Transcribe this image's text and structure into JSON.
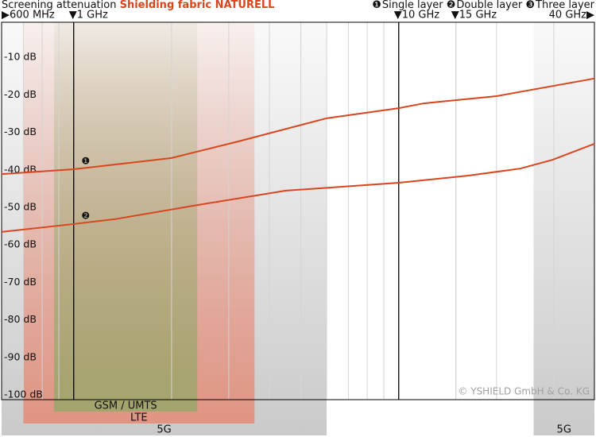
{
  "chart_data": {
    "type": "line",
    "title": "Screening attenuation",
    "subtitle": "Shielding fabric NATURELL",
    "copyright": "© YSHIELD GmbH & Co. KG",
    "x_scale": "log",
    "xlim": [
      0.6,
      40
    ],
    "xticks": [
      {
        "value": 0.6,
        "label": "▶600 MHz"
      },
      {
        "value": 1,
        "label": "▼1 GHz",
        "strong": true
      },
      {
        "value": 10,
        "label": "▼10 GHz",
        "strong": true
      },
      {
        "value": 15,
        "label": "▼15 GHz"
      },
      {
        "value": 40,
        "label": "40 GHz▶"
      }
    ],
    "xgrid": [
      0.7,
      0.8,
      0.9,
      2,
      3,
      4,
      5,
      6,
      7,
      8,
      9,
      20,
      30
    ],
    "ylim": [
      -100,
      0
    ],
    "yticks": [
      {
        "value": -10,
        "label": "-10 dB"
      },
      {
        "value": -20,
        "label": "-20 dB"
      },
      {
        "value": -30,
        "label": "-30 dB"
      },
      {
        "value": -40,
        "label": "-40 dB"
      },
      {
        "value": -50,
        "label": "-50 dB"
      },
      {
        "value": -60,
        "label": "-60 dB"
      },
      {
        "value": -70,
        "label": "-70 dB"
      },
      {
        "value": -80,
        "label": "-80 dB"
      },
      {
        "value": -90,
        "label": "-90 dB"
      },
      {
        "value": -100,
        "label": "-100 dB"
      }
    ],
    "legend": "top-right",
    "bands": [
      {
        "label": "5G",
        "from": 0.6,
        "to": 6,
        "color": "#b8b8b8"
      },
      {
        "label": "LTE",
        "from": 0.7,
        "to": 3.6,
        "color": "#e8826a"
      },
      {
        "label": "GSM / UMTS",
        "from": 0.87,
        "to": 2.4,
        "color": "#8fa866"
      },
      {
        "label": "5G",
        "from": 26,
        "to": 40,
        "color": "#b8b8b8"
      }
    ],
    "series": [
      {
        "name": "Single layer",
        "marker": "❶",
        "color": "#d9461e",
        "x": [
          0.6,
          1,
          2,
          3.2,
          6,
          10,
          12,
          20,
          40
        ],
        "values": [
          -40.5,
          -39.2,
          -36.2,
          -31.8,
          -25.6,
          -22.9,
          -21.6,
          -19.7,
          -15.0
        ]
      },
      {
        "name": "Double layer",
        "marker": "❷",
        "color": "#d9461e",
        "x": [
          0.6,
          1,
          1.34,
          2.42,
          4.5,
          10,
          16.4,
          23.7,
          29.7,
          40
        ],
        "values": [
          -55.9,
          -53.8,
          -52.5,
          -48.7,
          -44.9,
          -42.8,
          -40.9,
          -39.0,
          -36.7,
          -32.4
        ]
      },
      {
        "name": "Three layer",
        "marker": "❸",
        "color": "#d9461e",
        "x": [],
        "values": []
      }
    ]
  }
}
